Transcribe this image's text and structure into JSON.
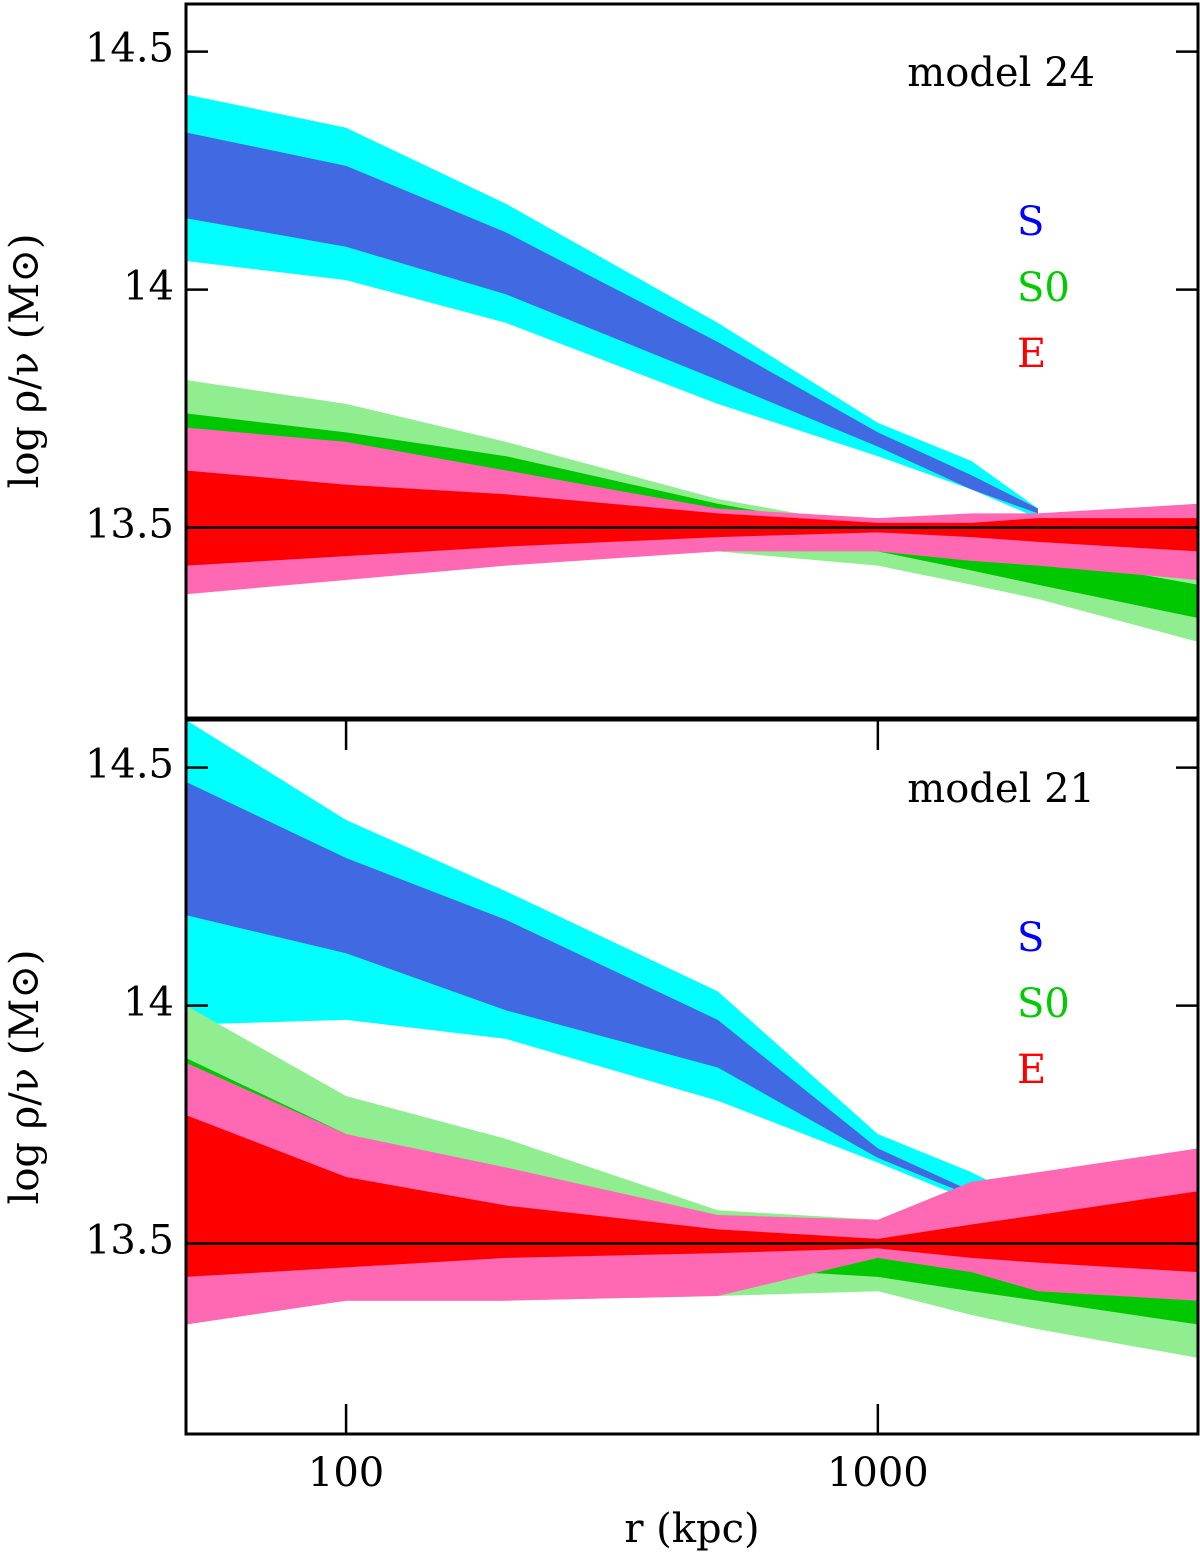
{
  "chart_data": [
    {
      "type": "band",
      "annotation": "model 24",
      "ylabel": "log ρ/ν (M⊙)",
      "xscale": "log",
      "xlim": [
        50,
        4000
      ],
      "ylim": [
        13.1,
        14.6
      ],
      "yticks": [
        13.5,
        14,
        14.5
      ],
      "hline": 13.5,
      "x": [
        50,
        100,
        200,
        500,
        1000,
        1500,
        2000,
        4000
      ],
      "series": [
        {
          "name": "S",
          "color": "#0000ff",
          "bands": [
            {
              "color": "#00ffff",
              "upper": [
                14.41,
                14.34,
                14.18,
                13.93,
                13.72,
                13.64,
                13.54,
                null
              ],
              "lower": [
                14.06,
                14.02,
                13.93,
                13.76,
                13.65,
                13.58,
                13.52,
                null
              ]
            },
            {
              "color": "#4169e1",
              "upper": [
                14.33,
                14.26,
                14.12,
                13.89,
                13.7,
                13.61,
                13.54,
                null
              ],
              "lower": [
                14.15,
                14.09,
                13.99,
                13.81,
                13.67,
                13.58,
                13.53,
                null
              ]
            }
          ]
        },
        {
          "name": "S0",
          "color": "#00cc00",
          "bands": [
            {
              "color": "#90ee90",
              "upper": [
                13.81,
                13.76,
                13.68,
                13.56,
                13.5,
                13.47,
                13.45,
                13.4
              ],
              "lower": [
                13.42,
                13.42,
                13.43,
                13.45,
                13.42,
                13.38,
                13.35,
                13.26
              ]
            },
            {
              "color": "#00c800",
              "upper": [
                13.74,
                13.7,
                13.65,
                13.55,
                13.49,
                13.46,
                13.44,
                13.38
              ],
              "lower": [
                13.55,
                13.52,
                13.5,
                13.47,
                13.45,
                13.41,
                13.38,
                13.31
              ]
            }
          ]
        },
        {
          "name": "E",
          "color": "#ff0000",
          "bands": [
            {
              "color": "#ff69b4",
              "upper": [
                13.71,
                13.68,
                13.62,
                13.54,
                13.52,
                13.53,
                13.53,
                13.55
              ],
              "lower": [
                13.36,
                13.39,
                13.42,
                13.45,
                13.45,
                13.43,
                13.42,
                13.39
              ]
            },
            {
              "color": "#ff0000",
              "upper": [
                13.62,
                13.59,
                13.57,
                13.53,
                13.51,
                13.51,
                13.52,
                13.52
              ],
              "lower": [
                13.42,
                13.44,
                13.46,
                13.48,
                13.49,
                13.48,
                13.47,
                13.45
              ]
            }
          ]
        }
      ]
    },
    {
      "type": "band",
      "annotation": "model 21",
      "ylabel": "log ρ/ν (M⊙)",
      "xlabel": "r (kpc)",
      "xscale": "log",
      "xlim": [
        50,
        4000
      ],
      "ylim": [
        13.1,
        14.6
      ],
      "xticks": [
        100,
        1000
      ],
      "yticks": [
        13.5,
        14,
        14.5
      ],
      "hline": 13.5,
      "x": [
        50,
        100,
        200,
        500,
        1000,
        1500,
        2000,
        4000
      ],
      "series": [
        {
          "name": "S",
          "color": "#0000ff",
          "bands": [
            {
              "color": "#00ffff",
              "upper": [
                14.6,
                14.39,
                14.24,
                14.03,
                13.73,
                13.65,
                13.58,
                null
              ],
              "lower": [
                13.96,
                13.97,
                13.93,
                13.8,
                13.67,
                13.59,
                13.55,
                null
              ]
            },
            {
              "color": "#4169e1",
              "upper": [
                14.47,
                14.31,
                14.18,
                13.97,
                13.7,
                13.61,
                13.56,
                null
              ],
              "lower": [
                14.19,
                14.11,
                13.99,
                13.87,
                13.68,
                13.6,
                13.55,
                null
              ]
            }
          ]
        },
        {
          "name": "S0",
          "color": "#00cc00",
          "bands": [
            {
              "color": "#90ee90",
              "upper": [
                14.0,
                13.81,
                13.72,
                13.57,
                13.55,
                13.52,
                13.51,
                13.51
              ],
              "lower": [
                13.33,
                13.38,
                13.38,
                13.39,
                13.4,
                13.35,
                13.32,
                13.26
              ]
            },
            {
              "color": "#00c800",
              "upper": [
                13.89,
                13.73,
                13.65,
                13.55,
                13.5,
                13.46,
                13.44,
                13.42
              ],
              "lower": [
                13.6,
                13.55,
                13.5,
                13.45,
                13.43,
                13.4,
                13.38,
                13.33
              ]
            }
          ]
        },
        {
          "name": "E",
          "color": "#ff0000",
          "bands": [
            {
              "color": "#ff69b4",
              "upper": [
                13.88,
                13.73,
                13.66,
                13.56,
                13.55,
                13.63,
                13.65,
                13.7
              ],
              "lower": [
                13.33,
                13.38,
                13.38,
                13.39,
                13.47,
                13.44,
                13.4,
                13.38
              ]
            },
            {
              "color": "#ff0000",
              "upper": [
                13.77,
                13.64,
                13.58,
                13.53,
                13.51,
                13.54,
                13.56,
                13.61
              ],
              "lower": [
                13.43,
                13.45,
                13.47,
                13.48,
                13.49,
                13.47,
                13.46,
                13.44
              ]
            }
          ]
        }
      ]
    }
  ]
}
